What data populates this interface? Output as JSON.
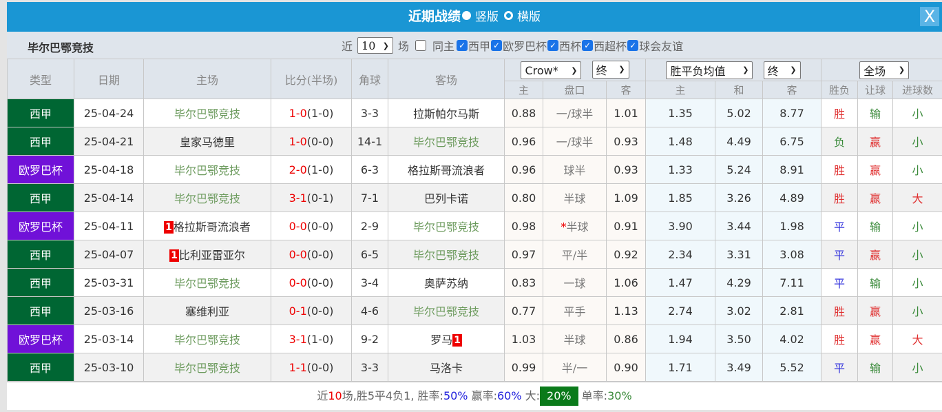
{
  "header": {
    "title": "近期战绩",
    "option_vertical": "竖版",
    "option_horizontal": "横版",
    "selected": "竖版",
    "close_label": "X"
  },
  "filter": {
    "team": "毕尔巴鄂竞技",
    "near_label": "近",
    "count": "10",
    "games_label": "场",
    "same_home_label": "同主",
    "same_home_checked": false,
    "competitions": [
      {
        "label": "西甲",
        "checked": true
      },
      {
        "label": "欧罗巴杯",
        "checked": true
      },
      {
        "label": "西杯",
        "checked": true
      },
      {
        "label": "西超杯",
        "checked": true
      },
      {
        "label": "球会友谊",
        "checked": true
      }
    ]
  },
  "table": {
    "headers": {
      "type": "类型",
      "date": "日期",
      "home": "主场",
      "score": "比分(半场)",
      "corner": "角球",
      "away": "客场"
    },
    "handicap_company": "Crow*",
    "handicap_stage": "终",
    "euro_type": "胜平负均值",
    "euro_stage": "终",
    "result_scope": "全场",
    "sub_headers": [
      "主",
      "盘口",
      "客",
      "主",
      "和",
      "客",
      "胜负",
      "让球",
      "进球数"
    ],
    "rows": [
      {
        "type": "西甲",
        "date": "25-04-24",
        "home": "毕尔巴鄂竞技",
        "home_red": "",
        "score": "1-0",
        "half": "(1-0)",
        "corner": "3-3",
        "away": "拉斯帕尔马斯",
        "away_red": "",
        "hc_home": "0.88",
        "hc_line": "一/球半",
        "hc_star": "",
        "hc_away": "1.01",
        "eu_home": "1.35",
        "eu_draw": "5.02",
        "eu_away": "8.77",
        "result": "胜",
        "handicap_result": "输",
        "goals": "小"
      },
      {
        "type": "西甲",
        "date": "25-04-21",
        "home": "皇家马德里",
        "home_red": "",
        "score": "1-0",
        "half": "(0-0)",
        "corner": "14-1",
        "away": "毕尔巴鄂竞技",
        "away_red": "",
        "hc_home": "0.96",
        "hc_line": "一/球半",
        "hc_star": "",
        "hc_away": "0.93",
        "eu_home": "1.48",
        "eu_draw": "4.49",
        "eu_away": "6.75",
        "result": "负",
        "handicap_result": "赢",
        "goals": "小"
      },
      {
        "type": "欧罗巴杯",
        "date": "25-04-18",
        "home": "毕尔巴鄂竞技",
        "home_red": "",
        "score": "2-0",
        "half": "(1-0)",
        "corner": "6-3",
        "away": "格拉斯哥流浪者",
        "away_red": "",
        "hc_home": "0.96",
        "hc_line": "球半",
        "hc_star": "",
        "hc_away": "0.93",
        "eu_home": "1.33",
        "eu_draw": "5.24",
        "eu_away": "8.91",
        "result": "胜",
        "handicap_result": "赢",
        "goals": "小"
      },
      {
        "type": "西甲",
        "date": "25-04-14",
        "home": "毕尔巴鄂竞技",
        "home_red": "",
        "score": "3-1",
        "half": "(0-1)",
        "corner": "7-1",
        "away": "巴列卡诺",
        "away_red": "",
        "hc_home": "0.80",
        "hc_line": "半球",
        "hc_star": "",
        "hc_away": "1.09",
        "eu_home": "1.85",
        "eu_draw": "3.26",
        "eu_away": "4.89",
        "result": "胜",
        "handicap_result": "赢",
        "goals": "大"
      },
      {
        "type": "欧罗巴杯",
        "date": "25-04-11",
        "home": "格拉斯哥流浪者",
        "home_red": "1",
        "score": "0-0",
        "half": "(0-0)",
        "corner": "2-9",
        "away": "毕尔巴鄂竞技",
        "away_red": "",
        "hc_home": "0.98",
        "hc_line": "半球",
        "hc_star": "*",
        "hc_away": "0.91",
        "eu_home": "3.90",
        "eu_draw": "3.44",
        "eu_away": "1.98",
        "result": "平",
        "handicap_result": "输",
        "goals": "小"
      },
      {
        "type": "西甲",
        "date": "25-04-07",
        "home": "比利亚雷亚尔",
        "home_red": "1",
        "score": "0-0",
        "half": "(0-0)",
        "corner": "6-5",
        "away": "毕尔巴鄂竞技",
        "away_red": "",
        "hc_home": "0.97",
        "hc_line": "平/半",
        "hc_star": "",
        "hc_away": "0.92",
        "eu_home": "2.34",
        "eu_draw": "3.31",
        "eu_away": "3.08",
        "result": "平",
        "handicap_result": "赢",
        "goals": "小"
      },
      {
        "type": "西甲",
        "date": "25-03-31",
        "home": "毕尔巴鄂竞技",
        "home_red": "",
        "score": "0-0",
        "half": "(0-0)",
        "corner": "3-4",
        "away": "奥萨苏纳",
        "away_red": "",
        "hc_home": "0.83",
        "hc_line": "一球",
        "hc_star": "",
        "hc_away": "1.06",
        "eu_home": "1.47",
        "eu_draw": "4.29",
        "eu_away": "7.11",
        "result": "平",
        "handicap_result": "输",
        "goals": "小"
      },
      {
        "type": "西甲",
        "date": "25-03-16",
        "home": "塞维利亚",
        "home_red": "",
        "score": "0-1",
        "half": "(0-0)",
        "corner": "4-6",
        "away": "毕尔巴鄂竞技",
        "away_red": "",
        "hc_home": "0.77",
        "hc_line": "平手",
        "hc_star": "",
        "hc_away": "1.13",
        "eu_home": "2.74",
        "eu_draw": "3.02",
        "eu_away": "2.81",
        "result": "胜",
        "handicap_result": "赢",
        "goals": "小"
      },
      {
        "type": "欧罗巴杯",
        "date": "25-03-14",
        "home": "毕尔巴鄂竞技",
        "home_red": "",
        "score": "3-1",
        "half": "(1-0)",
        "corner": "9-2",
        "away": "罗马",
        "away_red": "1",
        "hc_home": "1.03",
        "hc_line": "半球",
        "hc_star": "",
        "hc_away": "0.86",
        "eu_home": "1.94",
        "eu_draw": "3.50",
        "eu_away": "4.02",
        "result": "胜",
        "handicap_result": "赢",
        "goals": "大"
      },
      {
        "type": "西甲",
        "date": "25-03-10",
        "home": "毕尔巴鄂竞技",
        "home_red": "",
        "score": "1-1",
        "half": "(0-0)",
        "corner": "3-3",
        "away": "马洛卡",
        "away_red": "",
        "hc_home": "0.99",
        "hc_line": "半/一",
        "hc_star": "",
        "hc_away": "0.90",
        "eu_home": "1.71",
        "eu_draw": "3.49",
        "eu_away": "5.52",
        "result": "平",
        "handicap_result": "输",
        "goals": "小"
      }
    ]
  },
  "summary": {
    "p1": "近",
    "games": "10",
    "p2": "场,胜5平4负1, 胜率:",
    "win_rate": "50%",
    "p3": " 赢率:",
    "cover_rate": "60%",
    "p4": " 大:",
    "over_rate": "20%",
    "p5": " 单率:",
    "odd_rate": "30%"
  },
  "colors": {
    "title_bar": "#1a96d4",
    "league_西甲": "#006633",
    "league_欧罗巴杯": "#7011d8",
    "win": "#e03030",
    "loss": "#3a8a3a",
    "draw": "#3333dd",
    "focus_team": "#6b9a5c"
  }
}
